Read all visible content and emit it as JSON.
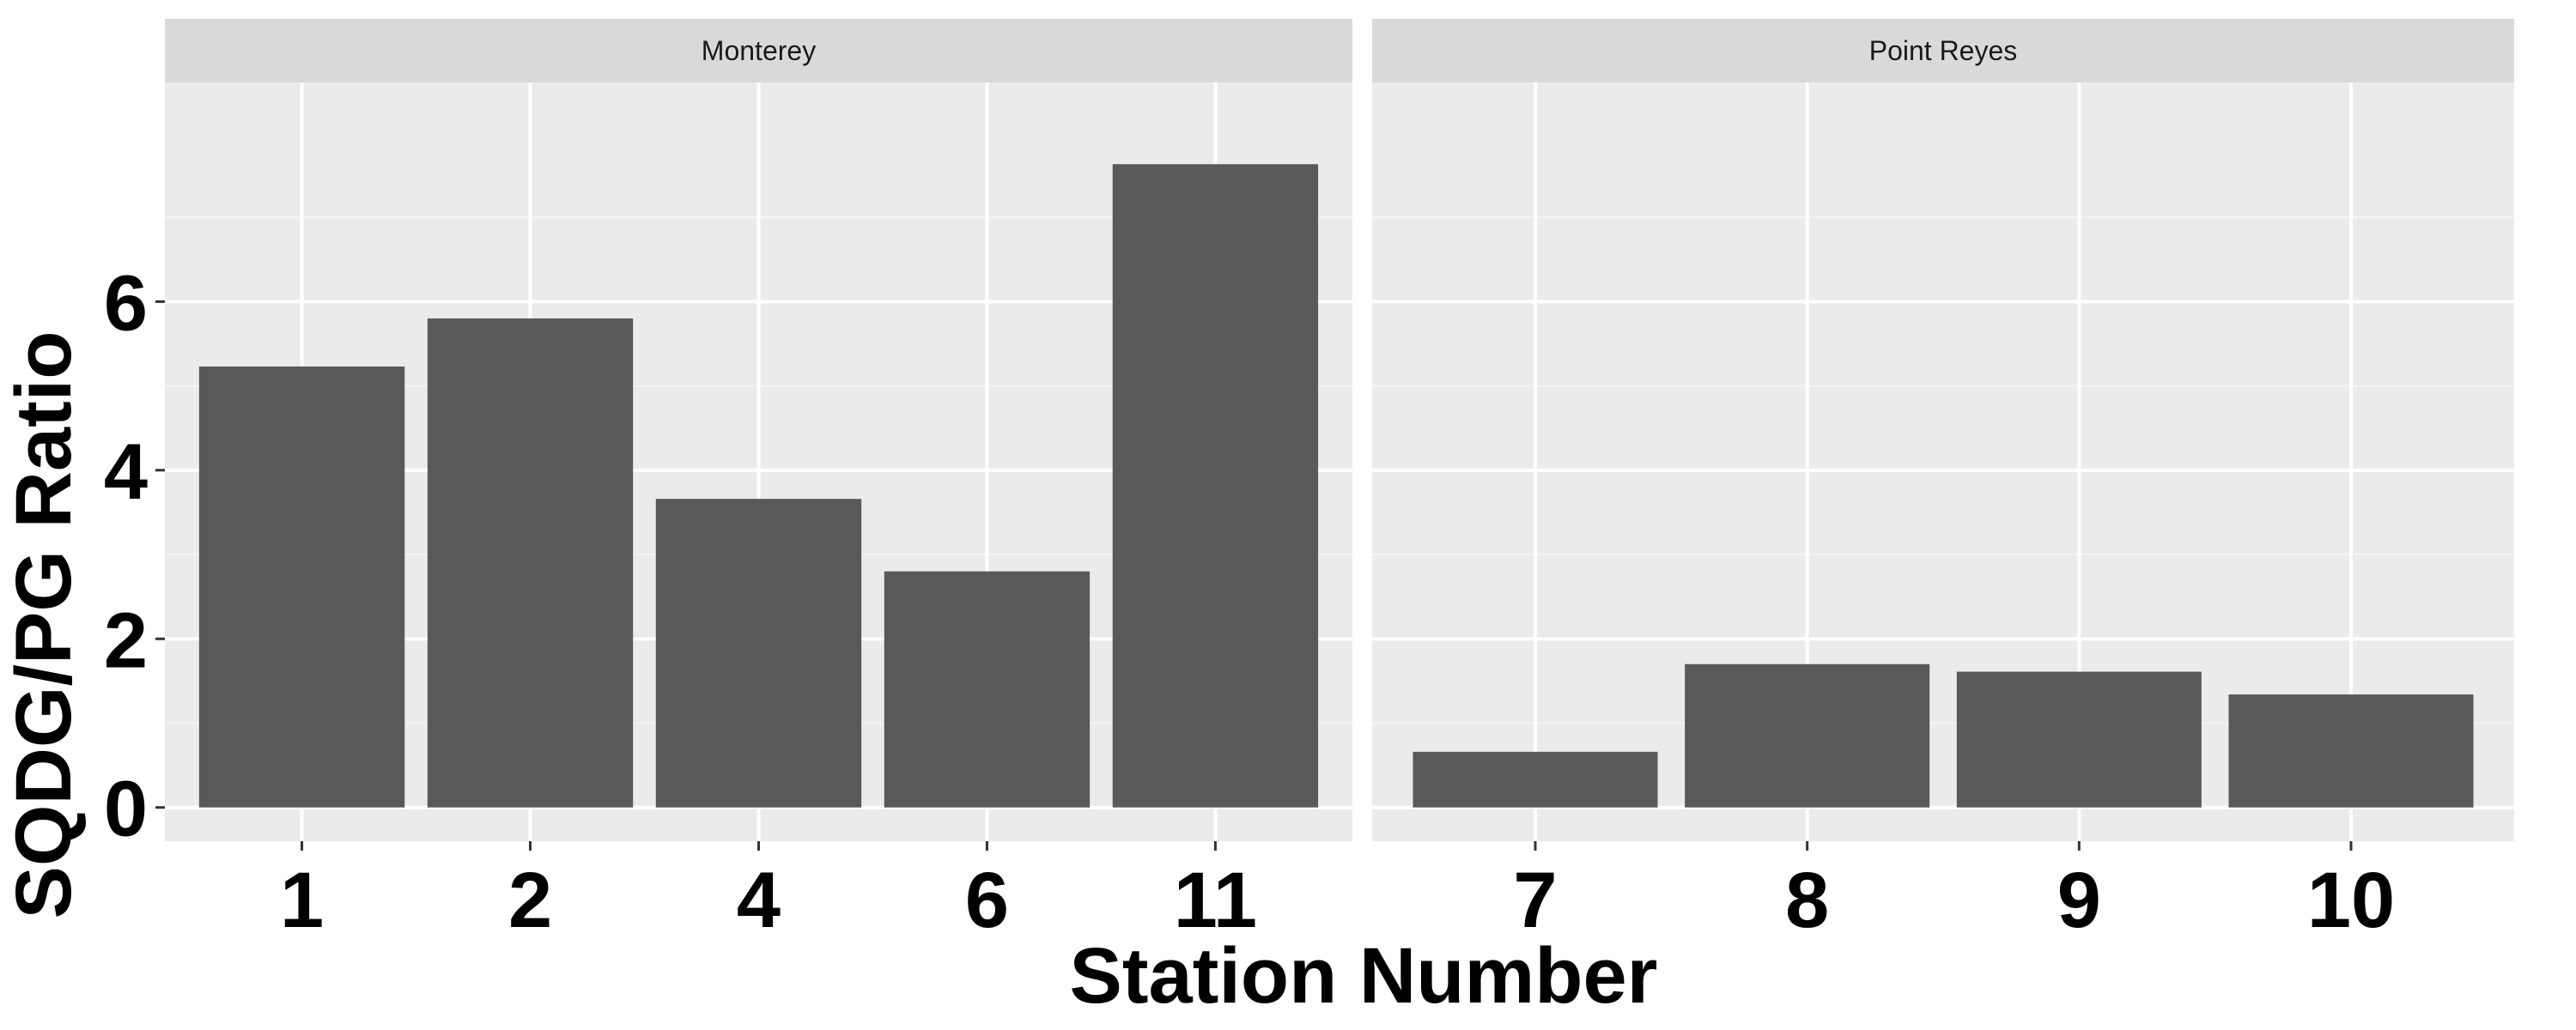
{
  "chart_data": {
    "type": "bar",
    "xlabel": "Station Number",
    "ylabel": "SQDG/PG Ratio",
    "ylim": [
      -0.4,
      8.6
    ],
    "y_ticks": [
      0,
      2,
      4,
      6
    ],
    "grid": true,
    "colors": {
      "bar": "#595959",
      "panel_bg": "#ebebeb",
      "strip_bg": "#d9d9d9",
      "grid_major": "#ffffff",
      "grid_minor": "#f4f4f4",
      "tick_mark": "#333333"
    },
    "facets": [
      {
        "name": "Monterey",
        "categories": [
          "1",
          "2",
          "4",
          "6",
          "11"
        ],
        "values": [
          5.23,
          5.8,
          3.66,
          2.8,
          7.63
        ]
      },
      {
        "name": "Point Reyes",
        "categories": [
          "7",
          "8",
          "9",
          "10"
        ],
        "values": [
          0.66,
          1.7,
          1.61,
          1.34
        ]
      }
    ]
  }
}
